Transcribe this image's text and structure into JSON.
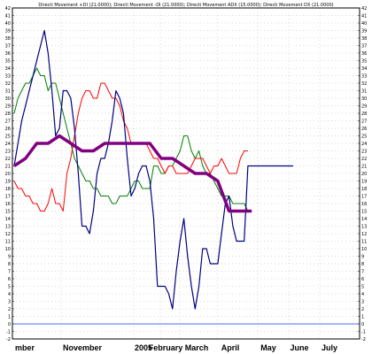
{
  "chart_data": {
    "type": "line",
    "title": "Directi Movement +DI (21.0000); Directi Movement -DI (21.0000); Directi Movement ADX (15.0000); Directi Movement DX (21.0000)",
    "xlabel": "",
    "ylabel": "",
    "ylim": [
      -2,
      42
    ],
    "y_ticks": [
      -2,
      -1,
      0,
      1,
      2,
      3,
      4,
      5,
      6,
      7,
      8,
      9,
      10,
      11,
      12,
      13,
      14,
      15,
      16,
      17,
      18,
      19,
      20,
      21,
      22,
      23,
      24,
      25,
      26,
      27,
      28,
      29,
      30,
      31,
      32,
      33,
      34,
      35,
      36,
      37,
      38,
      39,
      40,
      41,
      42
    ],
    "x_labels": [
      "mber",
      "November",
      "2005",
      "February",
      "March",
      "April",
      "May",
      "June",
      "July"
    ],
    "grid": true,
    "zero_line": 0,
    "colors": {
      "plus_di": "#008000",
      "minus_di": "#ff0000",
      "adx": "#800080",
      "dx": "#000080",
      "grid": "#b0b0b0",
      "zero": "#4a6cf7",
      "axis": "#000000"
    },
    "series": [
      {
        "key": "dx",
        "x": [
          0,
          1,
          2,
          3,
          4,
          5,
          6,
          7,
          8,
          9,
          10,
          11,
          12,
          13,
          14,
          15,
          16,
          17,
          18,
          19,
          20,
          21,
          22,
          23,
          24,
          25,
          26,
          27,
          28,
          29,
          30,
          31,
          32,
          33,
          34,
          35,
          36,
          37,
          38,
          39,
          40,
          41,
          42,
          43,
          44,
          45,
          46,
          47,
          48,
          49,
          50,
          51,
          52,
          53,
          54,
          55,
          56,
          57,
          58,
          59,
          60,
          61,
          62,
          63,
          64,
          65,
          66,
          67,
          68,
          69,
          70,
          71,
          72,
          73,
          74
        ],
        "values": [
          21,
          24,
          27,
          29,
          31,
          33,
          35,
          37,
          39,
          36,
          31,
          25,
          26,
          31,
          31,
          30,
          26,
          20,
          13,
          13,
          12,
          15,
          20,
          22,
          22,
          24,
          27,
          31,
          30,
          28,
          22,
          17,
          18,
          20,
          21,
          21,
          19,
          14,
          5,
          5,
          5,
          4,
          2,
          7,
          11,
          14,
          9,
          5,
          2,
          5,
          10,
          10,
          8,
          8,
          8,
          12,
          16,
          17,
          13,
          11,
          11,
          11,
          21,
          21,
          21,
          21,
          21,
          21,
          21,
          21,
          21,
          21,
          21,
          21,
          21
        ]
      },
      {
        "key": "minus_di",
        "x": [
          0,
          1,
          2,
          3,
          4,
          5,
          6,
          7,
          8,
          9,
          10,
          11,
          12,
          13,
          14,
          15,
          16,
          17,
          18,
          19,
          20,
          21,
          22,
          23,
          24,
          25,
          26,
          27,
          28,
          29,
          30,
          31,
          32,
          33,
          34,
          35,
          36,
          37,
          38,
          39,
          40,
          41,
          42,
          43,
          44,
          45,
          46,
          47,
          48,
          49,
          50,
          51,
          52,
          53,
          54,
          55,
          56,
          57,
          58,
          59,
          60,
          61,
          62
        ],
        "values": [
          19,
          18,
          18,
          17,
          17,
          16,
          16,
          15,
          15,
          16,
          18,
          16,
          16,
          15,
          20,
          22,
          25,
          28,
          30,
          31,
          31,
          30,
          30,
          32,
          32,
          31,
          30,
          30,
          29,
          27,
          26,
          24,
          24,
          24,
          24,
          24,
          23,
          22,
          22,
          21,
          20,
          21,
          21,
          20,
          20,
          20,
          20,
          21,
          22,
          22,
          22,
          21,
          20,
          21,
          21,
          22,
          21,
          20,
          20,
          20,
          22,
          23,
          23
        ]
      },
      {
        "key": "plus_di",
        "x": [
          0,
          1,
          2,
          3,
          4,
          5,
          6,
          7,
          8,
          9,
          10,
          11,
          12,
          13,
          14,
          15,
          16,
          17,
          18,
          19,
          20,
          21,
          22,
          23,
          24,
          25,
          26,
          27,
          28,
          29,
          30,
          31,
          32,
          33,
          34,
          35,
          36,
          37,
          38,
          39,
          40,
          41,
          42,
          43,
          44,
          45,
          46,
          47,
          48,
          49,
          50,
          51,
          52,
          53,
          54,
          55,
          56,
          57,
          58,
          59,
          60,
          61,
          62
        ],
        "values": [
          28,
          30,
          31,
          32,
          32,
          33,
          34,
          33,
          33,
          31,
          32,
          32,
          30,
          28,
          26,
          24,
          22,
          21,
          20,
          19,
          19,
          18,
          18,
          17,
          17,
          17,
          16,
          16,
          17,
          17,
          17,
          18,
          19,
          19,
          18,
          18,
          18,
          21,
          21,
          20,
          20,
          21,
          21,
          22,
          23,
          25,
          25,
          23,
          22,
          23,
          21,
          20,
          20,
          19,
          18,
          17,
          17,
          17,
          16,
          16,
          16,
          16,
          15
        ]
      },
      {
        "key": "adx",
        "x": [
          0,
          3,
          6,
          9,
          12,
          15,
          18,
          21,
          24,
          27,
          30,
          33,
          36,
          39,
          42,
          45,
          48,
          51,
          54,
          57,
          60,
          63
        ],
        "values": [
          21,
          22,
          24,
          24,
          25,
          24,
          23,
          23,
          24,
          24,
          24,
          24,
          24,
          22,
          22,
          21,
          20,
          20,
          19,
          15,
          15,
          15
        ]
      }
    ]
  }
}
